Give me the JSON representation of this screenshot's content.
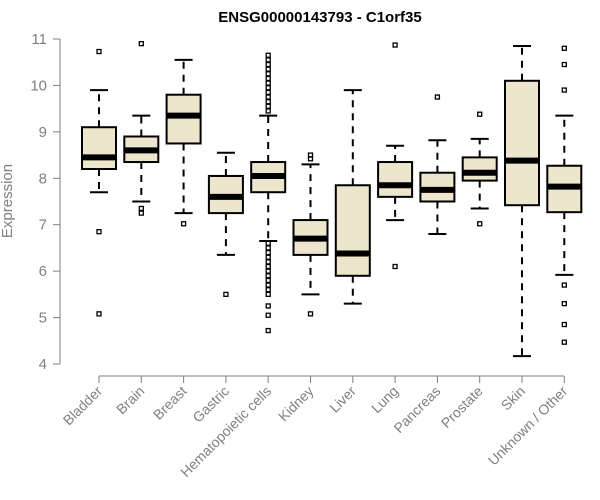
{
  "chart_data": {
    "type": "boxplot",
    "title": "ENSG00000143793 - C1orf35",
    "xlabel": "",
    "ylabel": "Expression",
    "ylim": [
      4,
      11
    ],
    "yticks": [
      "4",
      "5",
      "6",
      "7",
      "8",
      "9",
      "10",
      "11"
    ],
    "categories": [
      "Bladder",
      "Brain",
      "Breast",
      "Gastric",
      "Hematopoietic cells",
      "Kidney",
      "Liver",
      "Lung",
      "Pancreas",
      "Prostate",
      "Skin",
      "Unknown / Other"
    ],
    "boxes": [
      {
        "name": "Bladder",
        "lower_whisker": 7.7,
        "q1": 8.2,
        "median": 8.45,
        "q3": 9.1,
        "upper_whisker": 9.9,
        "outliers": [
          5.08,
          6.85,
          10.73
        ]
      },
      {
        "name": "Brain",
        "lower_whisker": 7.5,
        "q1": 8.35,
        "median": 8.6,
        "q3": 8.9,
        "upper_whisker": 9.35,
        "outliers": [
          7.25,
          7.35,
          10.9
        ]
      },
      {
        "name": "Breast",
        "lower_whisker": 7.25,
        "q1": 8.75,
        "median": 9.35,
        "q3": 9.8,
        "upper_whisker": 10.55,
        "outliers": [
          7.02
        ]
      },
      {
        "name": "Gastric",
        "lower_whisker": 6.35,
        "q1": 7.25,
        "median": 7.6,
        "q3": 8.05,
        "upper_whisker": 8.55,
        "outliers": [
          5.5
        ]
      },
      {
        "name": "Hematopoietic cells",
        "lower_whisker": 6.65,
        "q1": 7.7,
        "median": 8.05,
        "q3": 8.35,
        "upper_whisker": 9.35,
        "outliers": [
          4.72,
          5.05,
          5.25,
          5.5,
          5.6,
          5.7,
          5.8,
          5.9,
          6.0,
          6.1,
          6.2,
          6.3,
          6.4,
          6.5,
          6.6,
          9.45,
          9.55,
          9.65,
          9.75,
          9.85,
          9.95,
          10.05,
          10.15,
          10.25,
          10.35,
          10.45,
          10.55,
          10.65
        ]
      },
      {
        "name": "Kidney",
        "lower_whisker": 5.5,
        "q1": 6.35,
        "median": 6.7,
        "q3": 7.1,
        "upper_whisker": 8.3,
        "outliers": [
          5.08,
          8.42,
          8.5
        ]
      },
      {
        "name": "Liver",
        "lower_whisker": 5.3,
        "q1": 5.9,
        "median": 6.38,
        "q3": 7.85,
        "upper_whisker": 9.9,
        "outliers": []
      },
      {
        "name": "Lung",
        "lower_whisker": 7.1,
        "q1": 7.6,
        "median": 7.85,
        "q3": 8.35,
        "upper_whisker": 8.7,
        "outliers": [
          6.1,
          10.87
        ]
      },
      {
        "name": "Pancreas",
        "lower_whisker": 6.8,
        "q1": 7.5,
        "median": 7.75,
        "q3": 8.12,
        "upper_whisker": 8.82,
        "outliers": [
          9.75
        ]
      },
      {
        "name": "Prostate",
        "lower_whisker": 7.35,
        "q1": 7.95,
        "median": 8.12,
        "q3": 8.45,
        "upper_whisker": 8.85,
        "outliers": [
          7.02,
          9.38
        ]
      },
      {
        "name": "Skin",
        "lower_whisker": 4.17,
        "q1": 7.42,
        "median": 8.38,
        "q3": 10.1,
        "upper_whisker": 10.85,
        "outliers": []
      },
      {
        "name": "Unknown / Other",
        "lower_whisker": 5.92,
        "q1": 7.27,
        "median": 7.82,
        "q3": 8.27,
        "upper_whisker": 9.35,
        "outliers": [
          4.47,
          4.85,
          5.3,
          5.7,
          9.9,
          10.45,
          10.8
        ]
      }
    ],
    "grid": false,
    "colors": {
      "box_fill": "#ede6cd",
      "box_stroke": "#000000",
      "axis": "#808080"
    }
  }
}
